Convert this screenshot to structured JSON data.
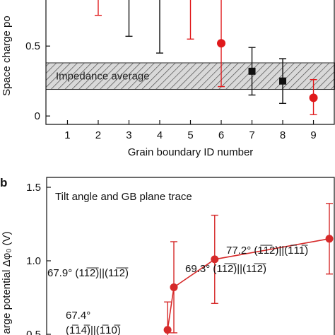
{
  "chart_data": [
    {
      "type": "scatter",
      "panel_label": "",
      "title": "",
      "xlabel": "Grain boundary ID number",
      "ylabel": "Space charge po",
      "xlim": [
        0.3,
        9.7
      ],
      "ylim": [
        -0.06,
        0.88
      ],
      "x_ticks": [
        1,
        2,
        3,
        4,
        5,
        6,
        7,
        8,
        9
      ],
      "y_ticks": [
        {
          "v": 0,
          "label": "0"
        },
        {
          "v": 0.5,
          "label": "0.5"
        }
      ],
      "band": {
        "label": "Impedance average",
        "low": 0.19,
        "high": 0.38,
        "fill": "hatched"
      },
      "series": [
        {
          "color": "#e0191b",
          "marker": "circle",
          "points": [
            {
              "x": 2,
              "y": null,
              "err_low": null,
              "err_high": null,
              "bar_bottom": 0.72
            },
            {
              "x": 5,
              "y": null,
              "err_low": null,
              "err_high": null,
              "bar_bottom": 0.55
            },
            {
              "x": 6,
              "y": 0.52,
              "err_low": 0.21,
              "err_high": null
            },
            {
              "x": 9,
              "y": 0.13,
              "err_low": 0.01,
              "err_high": 0.26
            }
          ]
        },
        {
          "color": "#111111",
          "marker": "square",
          "points": [
            {
              "x": 3,
              "y": null,
              "err_low": null,
              "err_high": null,
              "bar_bottom": 0.57
            },
            {
              "x": 4,
              "y": null,
              "err_low": null,
              "err_high": null,
              "bar_bottom": 0.45
            },
            {
              "x": 7,
              "y": 0.32,
              "err_low": 0.15,
              "err_high": 0.49
            },
            {
              "x": 8,
              "y": 0.25,
              "err_low": 0.09,
              "err_high": 0.41
            }
          ]
        }
      ]
    },
    {
      "type": "line",
      "panel_label": "b",
      "title": "Tilt angle and GB plane trace",
      "xlabel": "",
      "ylabel": "arge potential Δφ₀ (V)",
      "ylim": [
        0.5,
        1.5
      ],
      "xlim": [
        0,
        9
      ],
      "y_ticks": [
        {
          "v": 0.5,
          "label": "0.5"
        },
        {
          "v": 1.0,
          "label": "1.0"
        },
        {
          "v": 1.5,
          "label": "1.5"
        }
      ],
      "series": [
        {
          "color": "#d62a2a",
          "marker": "circle",
          "points": [
            {
              "x": 3.85,
              "y": 0.53,
              "err_low": null,
              "err_high": 0.72
            },
            {
              "x": 4.05,
              "y": 0.82,
              "err_low": 0.51,
              "err_high": 1.13
            },
            {
              "x": 5.35,
              "y": 1.01,
              "err_low": 0.71,
              "err_high": 1.31
            },
            {
              "x": 9.0,
              "y": 1.15,
              "err_low": 0.91,
              "err_high": 1.39
            }
          ]
        }
      ],
      "annotations": [
        {
          "text": "77.2° (1̅1̅2)||(1̅11̅)",
          "target": "point-4"
        },
        {
          "text": "67.9° (11̅2̅)||(11̅2̅)",
          "target": "point-2"
        },
        {
          "text": "69.3° (11̅2̅)||(11̅2̅)",
          "target": "point-3"
        },
        {
          "text": "67.4°",
          "target": "point-1"
        },
        {
          "text": "(1̅14̅)||(1̅10̅)",
          "target": "point-1"
        }
      ]
    }
  ]
}
